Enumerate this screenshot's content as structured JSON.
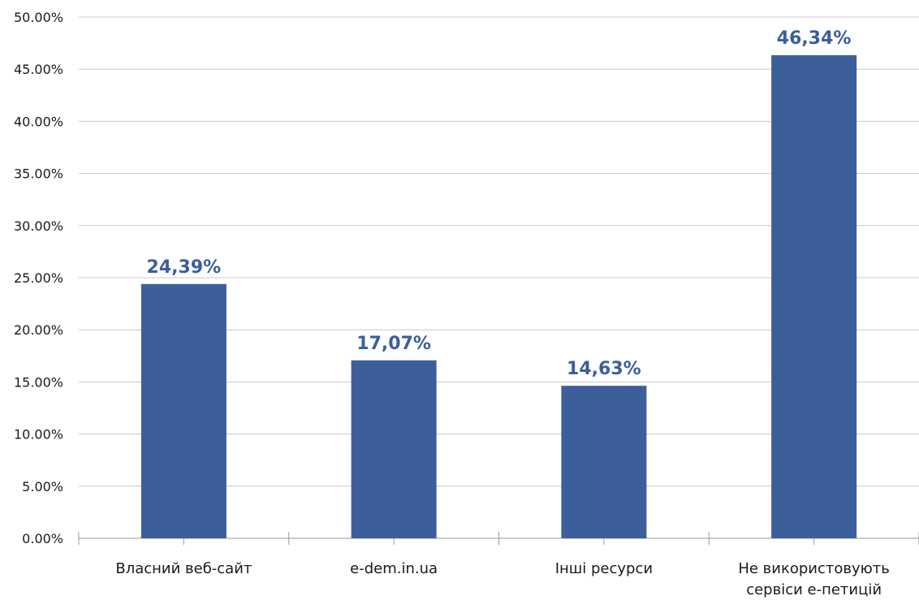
{
  "chart_data": {
    "type": "bar",
    "title": "",
    "xlabel": "",
    "ylabel": "",
    "categories": [
      [
        "Власний веб-сайт"
      ],
      [
        "e-dem.in.ua"
      ],
      [
        "Інші ресурси"
      ],
      [
        "Не використовують",
        "сервіси е-петицій"
      ]
    ],
    "values": [
      24.39,
      17.07,
      14.63,
      46.34
    ],
    "data_labels": [
      "24,39%",
      "17,07%",
      "14,63%",
      "46,34%"
    ],
    "ylim": [
      0,
      50
    ],
    "yticks": [
      0,
      5,
      10,
      15,
      20,
      25,
      30,
      35,
      40,
      45,
      50
    ],
    "ytick_labels": [
      "0.00%",
      "5.00%",
      "10.00%",
      "15.00%",
      "20.00%",
      "25.00%",
      "30.00%",
      "35.00%",
      "40.00%",
      "45.00%",
      "50.00%"
    ],
    "grid": true,
    "legend": "none",
    "colors": {
      "bar": "#3C5E9B",
      "label": "#3C5E9B",
      "grid": "#c8c8c8",
      "axis": "#9a9a9a"
    }
  }
}
